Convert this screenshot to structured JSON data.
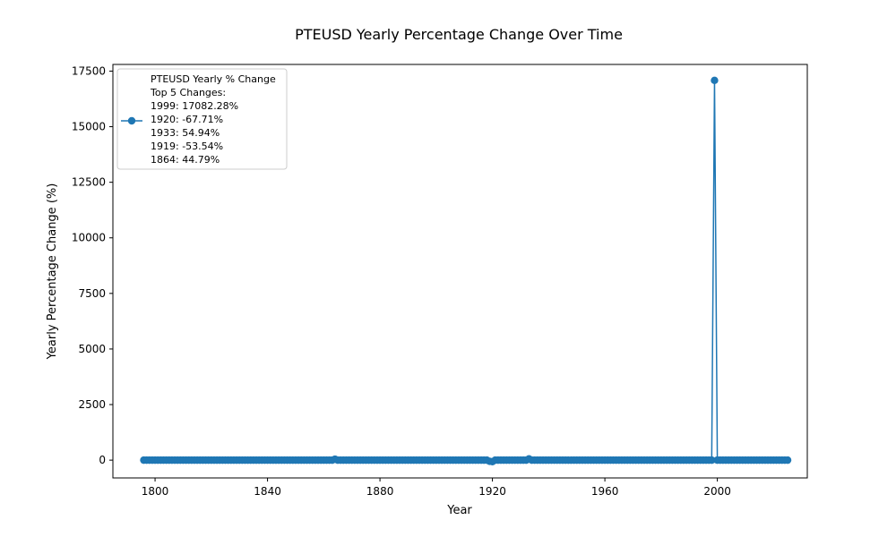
{
  "chart_data": {
    "type": "line",
    "title": "PTEUSD Yearly Percentage Change Over Time",
    "xlabel": "Year",
    "ylabel": "Yearly Percentage Change (%)",
    "xlim": [
      1785,
      2032
    ],
    "ylim": [
      -800,
      17800
    ],
    "xticks": [
      1800,
      1840,
      1880,
      1920,
      1960,
      2000
    ],
    "yticks": [
      0,
      2500,
      5000,
      7500,
      10000,
      12500,
      15000,
      17500
    ],
    "grid": false,
    "legend_position": "upper-left",
    "legend_lines": [
      "PTEUSD Yearly % Change",
      "Top 5 Changes:",
      "1999: 17082.28%",
      "1920: -67.71%",
      "1933: 54.94%",
      "1919: -53.54%",
      "1864: 44.79%"
    ],
    "series": [
      {
        "name": "PTEUSD Yearly % Change",
        "color": "#1f77b4",
        "x_start": 1796,
        "x_end": 2025,
        "baseline_value": 0,
        "highlight_points": [
          {
            "x": 1999,
            "y": 17082.28
          },
          {
            "x": 1920,
            "y": -67.71
          },
          {
            "x": 1933,
            "y": 54.94
          },
          {
            "x": 1919,
            "y": -53.54
          },
          {
            "x": 1864,
            "y": 44.79
          }
        ]
      }
    ]
  }
}
